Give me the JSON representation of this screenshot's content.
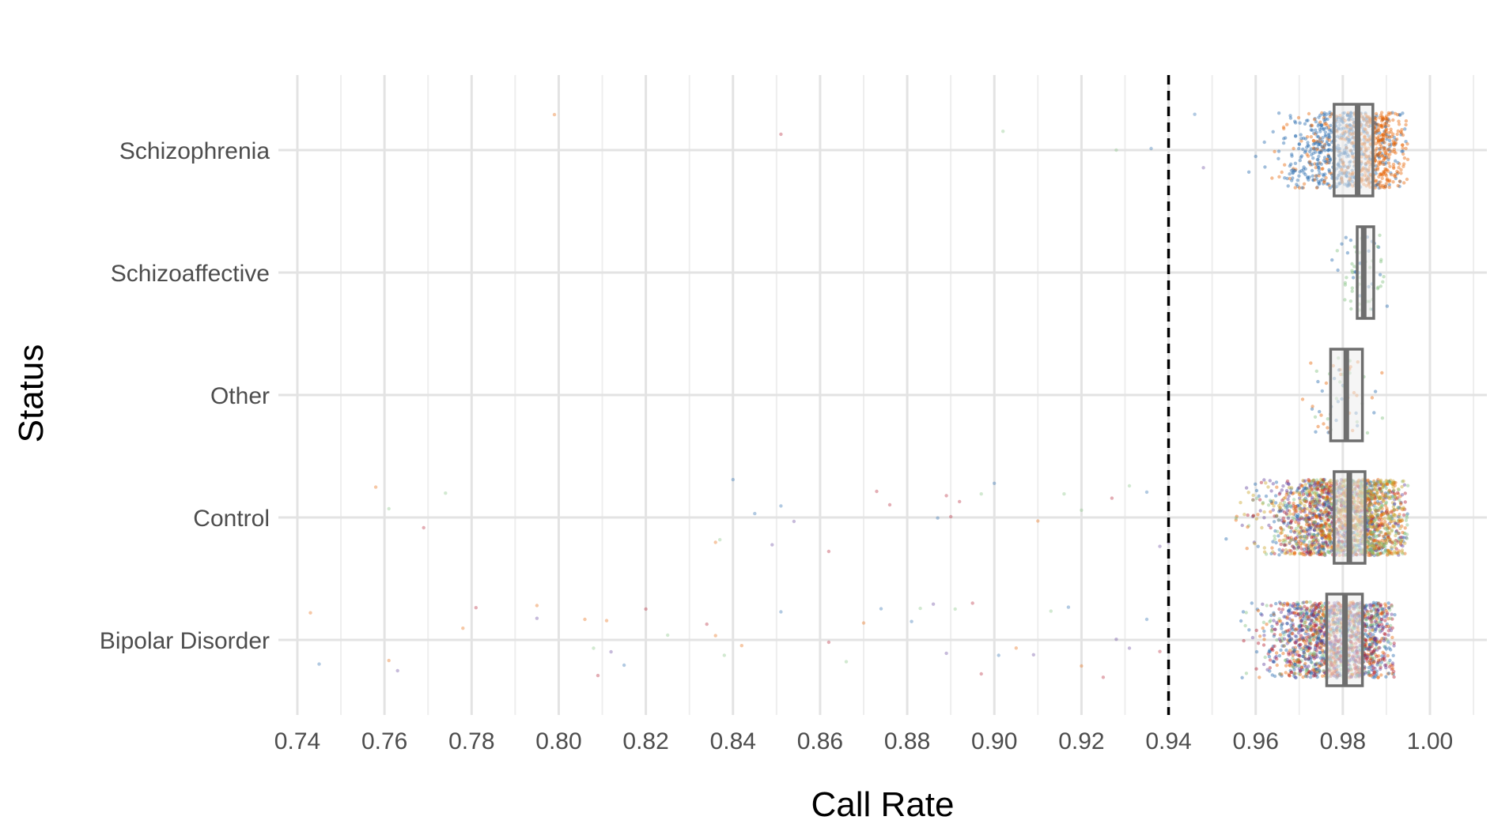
{
  "chart_data": {
    "type": "scatter",
    "subtype": "jittered strip plot with boxplots",
    "xlabel": "Call Rate",
    "ylabel": "Status",
    "xlim": [
      0.74,
      1.0
    ],
    "x_ticks": [
      "0.74",
      "0.76",
      "0.78",
      "0.80",
      "0.82",
      "0.84",
      "0.86",
      "0.88",
      "0.90",
      "0.92",
      "0.94",
      "0.96",
      "0.98",
      "1.00"
    ],
    "categories": [
      "Schizophrenia",
      "Schizoaffective",
      "Other",
      "Control",
      "Bipolar Disorder"
    ],
    "threshold": 0.94,
    "grid": true,
    "legend": "none",
    "colors": {
      "blue": "#2166ac",
      "orange": "#e66101",
      "green": "#7fbf7b",
      "red": "#b2182b",
      "gold": "#c9a227",
      "purple": "#5e3c99",
      "box_stroke": "#6e6e6e",
      "box_fill": "#ececec",
      "grid": "#e3e3e3",
      "threshold_line": "#000000"
    },
    "boxplots": [
      {
        "category": "Schizophrenia",
        "q1": 0.978,
        "median": 0.9834,
        "q3": 0.9869
      },
      {
        "category": "Schizoaffective",
        "q1": 0.9833,
        "median": 0.9848,
        "q3": 0.9871
      },
      {
        "category": "Other",
        "q1": 0.9772,
        "median": 0.9808,
        "q3": 0.9845
      },
      {
        "category": "Control",
        "q1": 0.978,
        "median": 0.9815,
        "q3": 0.9851
      },
      {
        "category": "Bipolar Disorder",
        "q1": 0.9763,
        "median": 0.9805,
        "q3": 0.9845
      }
    ],
    "point_clusters": [
      {
        "category": "Schizophrenia",
        "n": 700,
        "min": 0.955,
        "max": 0.995,
        "mean": 0.98,
        "sd": 0.007,
        "colors": [
          "blue",
          "blue",
          "blue",
          "orange"
        ]
      },
      {
        "category": "Schizophrenia",
        "n": 320,
        "min": 0.978,
        "max": 0.995,
        "mean": 0.988,
        "sd": 0.0035,
        "colors": [
          "orange"
        ]
      },
      {
        "category": "Schizoaffective",
        "n": 70,
        "min": 0.971,
        "max": 0.991,
        "mean": 0.985,
        "sd": 0.003,
        "colors": [
          "green",
          "green",
          "blue"
        ]
      },
      {
        "category": "Other",
        "n": 60,
        "min": 0.97,
        "max": 0.99,
        "mean": 0.98,
        "sd": 0.004,
        "colors": [
          "blue",
          "green",
          "orange"
        ]
      },
      {
        "category": "Control",
        "n": 1800,
        "min": 0.943,
        "max": 0.995,
        "mean": 0.979,
        "sd": 0.008,
        "colors": [
          "blue",
          "red",
          "orange",
          "green",
          "purple",
          "gold"
        ]
      },
      {
        "category": "Control",
        "n": 400,
        "min": 0.975,
        "max": 0.995,
        "mean": 0.987,
        "sd": 0.004,
        "colors": [
          "gold",
          "orange",
          "green"
        ]
      },
      {
        "category": "Bipolar Disorder",
        "n": 1700,
        "min": 0.948,
        "max": 0.992,
        "mean": 0.979,
        "sd": 0.008,
        "colors": [
          "blue",
          "red",
          "purple",
          "orange",
          "green"
        ]
      }
    ],
    "outliers": [
      {
        "category": "Schizophrenia",
        "x": [
          0.799,
          0.851,
          0.902,
          0.928,
          0.936,
          0.946,
          0.948
        ]
      },
      {
        "category": "Control",
        "x": [
          0.758,
          0.761,
          0.769,
          0.774,
          0.836,
          0.837,
          0.84,
          0.845,
          0.849,
          0.851,
          0.854,
          0.862,
          0.873,
          0.876,
          0.887,
          0.889,
          0.89,
          0.892,
          0.897,
          0.9,
          0.91,
          0.916,
          0.92,
          0.927,
          0.931,
          0.935,
          0.938,
          0.94
        ]
      },
      {
        "category": "Bipolar Disorder",
        "x": [
          0.743,
          0.745,
          0.761,
          0.763,
          0.778,
          0.781,
          0.795,
          0.795,
          0.806,
          0.808,
          0.809,
          0.811,
          0.812,
          0.815,
          0.82,
          0.825,
          0.834,
          0.836,
          0.838,
          0.842,
          0.851,
          0.862,
          0.866,
          0.87,
          0.874,
          0.881,
          0.883,
          0.886,
          0.889,
          0.891,
          0.895,
          0.897,
          0.901,
          0.905,
          0.909,
          0.913,
          0.917,
          0.92,
          0.925,
          0.928,
          0.931,
          0.935,
          0.938
        ]
      }
    ]
  }
}
